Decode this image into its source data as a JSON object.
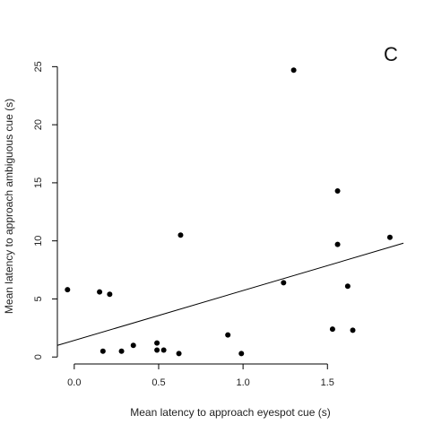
{
  "chart_data": {
    "type": "scatter",
    "panel_label": "C",
    "xlabel": "Mean latency to approach eyespot cue (s)",
    "ylabel": "Mean latency to approach ambiguous cue (s)",
    "xlim": [
      -0.1,
      1.95
    ],
    "ylim": [
      -0.6,
      25.8
    ],
    "x_ticks": [
      0.0,
      0.5,
      1.0,
      1.5
    ],
    "x_tick_labels": [
      "0.0",
      "0.5",
      "1.0",
      "1.5"
    ],
    "y_ticks": [
      0,
      5,
      10,
      15,
      20,
      25
    ],
    "y_tick_labels": [
      "0",
      "5",
      "10",
      "15",
      "20",
      "25"
    ],
    "grid": false,
    "points": [
      {
        "x": -0.04,
        "y": 5.8
      },
      {
        "x": 0.15,
        "y": 5.6
      },
      {
        "x": 0.17,
        "y": 0.5
      },
      {
        "x": 0.21,
        "y": 5.4
      },
      {
        "x": 0.28,
        "y": 0.5
      },
      {
        "x": 0.35,
        "y": 1.0
      },
      {
        "x": 0.49,
        "y": 1.2
      },
      {
        "x": 0.49,
        "y": 0.6
      },
      {
        "x": 0.53,
        "y": 0.6
      },
      {
        "x": 0.62,
        "y": 0.3
      },
      {
        "x": 0.63,
        "y": 10.5
      },
      {
        "x": 0.91,
        "y": 1.9
      },
      {
        "x": 0.99,
        "y": 0.3
      },
      {
        "x": 1.24,
        "y": 6.4
      },
      {
        "x": 1.3,
        "y": 24.7
      },
      {
        "x": 1.53,
        "y": 2.4
      },
      {
        "x": 1.56,
        "y": 14.3
      },
      {
        "x": 1.56,
        "y": 9.7
      },
      {
        "x": 1.62,
        "y": 6.1
      },
      {
        "x": 1.65,
        "y": 2.3
      },
      {
        "x": 1.87,
        "y": 10.3
      }
    ],
    "regression_line": {
      "x": [
        -0.1,
        1.95
      ],
      "y": [
        1.0,
        9.8
      ]
    }
  }
}
